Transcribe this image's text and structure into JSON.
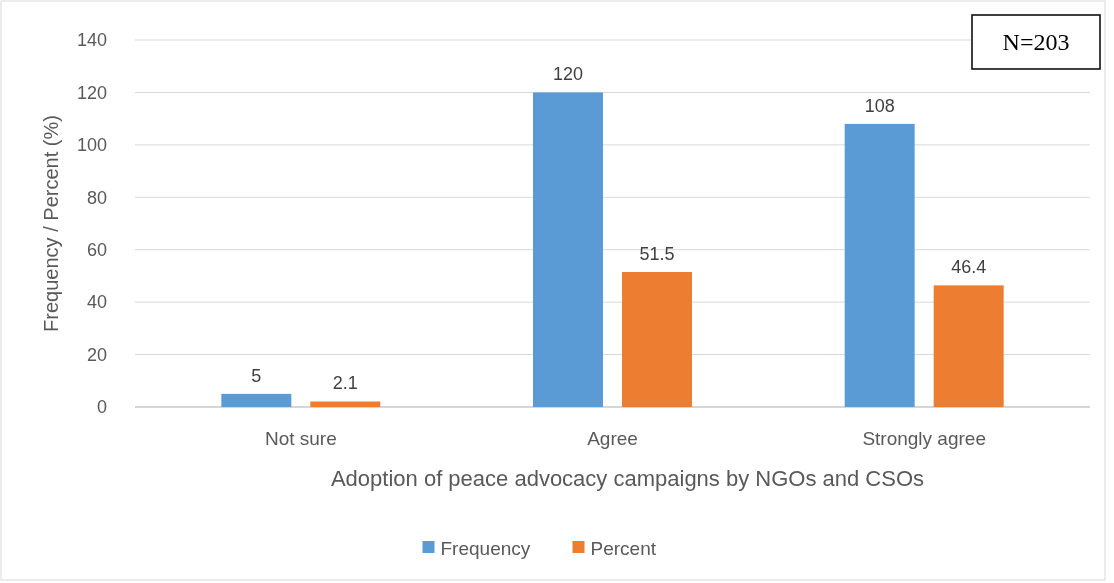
{
  "chart_data": {
    "type": "bar",
    "xlabel": "Adoption of peace advocacy campaigns by NGOs and CSOs",
    "ylabel": "Frequency / Percent (%)",
    "categories": [
      "Not sure",
      "Agree",
      "Strongly agree"
    ],
    "series": [
      {
        "name": "Frequency",
        "color": "#5b9bd5",
        "values": [
          5,
          120,
          108
        ]
      },
      {
        "name": "Percent",
        "color": "#ed7d31",
        "values": [
          2.1,
          51.5,
          46.4
        ]
      }
    ],
    "ylim": [
      0,
      140
    ],
    "yticks": [
      0,
      20,
      40,
      60,
      80,
      100,
      120,
      140
    ],
    "grid": "y",
    "legend": "bottom",
    "data_labels": true,
    "annotations": [
      "N=203"
    ]
  }
}
